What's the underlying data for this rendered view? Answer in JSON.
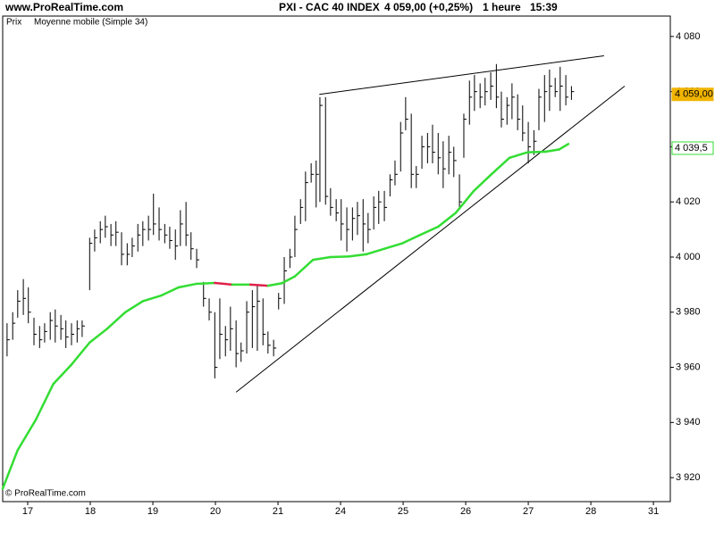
{
  "chart_data": {
    "type": "ohlc",
    "site": "www.ProRealTime.com",
    "title": "PXI - CAC 40 INDEX",
    "quote": "4 059,00 (+0,25%)",
    "interval": "1 heure",
    "time": "15:39",
    "footer": "© ProRealTime.com",
    "xlim": [
      -0.4,
      10.27
    ],
    "xticks": [
      {
        "value": 0,
        "label": "17"
      },
      {
        "value": 1,
        "label": "18"
      },
      {
        "value": 2,
        "label": "19"
      },
      {
        "value": 3,
        "label": "20"
      },
      {
        "value": 4,
        "label": "21"
      },
      {
        "value": 5,
        "label": "24"
      },
      {
        "value": 6,
        "label": "25"
      },
      {
        "value": 7,
        "label": "26"
      },
      {
        "value": 8,
        "label": "27"
      },
      {
        "value": 9,
        "label": "28"
      },
      {
        "value": 10,
        "label": "31"
      }
    ],
    "ylim": [
      3911.3,
      4087.4
    ],
    "yticks": [
      {
        "value": 3920,
        "label": "3 920"
      },
      {
        "value": 3940,
        "label": "3 940"
      },
      {
        "value": 3960,
        "label": "3 960"
      },
      {
        "value": 3980,
        "label": "3 980"
      },
      {
        "value": 4000,
        "label": "4 000"
      },
      {
        "value": 4020,
        "label": "4 020"
      },
      {
        "value": 4040,
        "label": "4 040"
      },
      {
        "value": 4060,
        "label": "4 060"
      },
      {
        "value": 4080,
        "label": "4 080"
      }
    ],
    "grid": false,
    "price": {
      "name": "Prix",
      "color": "#000000",
      "x": [
        -0.33,
        -0.24,
        -0.16,
        -0.07,
        0.01,
        0.1,
        0.19,
        0.27,
        0.36,
        0.44,
        0.53,
        0.61,
        0.7,
        0.79,
        0.87,
        0.99,
        1.07,
        1.16,
        1.24,
        1.33,
        1.41,
        1.5,
        1.59,
        1.67,
        1.76,
        1.84,
        1.93,
        2.01,
        2.1,
        2.19,
        2.27,
        2.36,
        2.44,
        2.53,
        2.61,
        2.7,
        2.81,
        2.9,
        2.99,
        3.07,
        3.16,
        3.24,
        3.33,
        3.41,
        3.5,
        3.59,
        3.67,
        3.76,
        3.84,
        3.93,
        4.01,
        4.1,
        4.19,
        4.27,
        4.36,
        4.44,
        4.53,
        4.61,
        4.67,
        4.76,
        4.84,
        4.93,
        5.01,
        5.1,
        5.19,
        5.27,
        5.36,
        5.44,
        5.53,
        5.61,
        5.7,
        5.79,
        5.87,
        5.96,
        6.04,
        6.13,
        6.21,
        6.3,
        6.39,
        6.47,
        6.56,
        6.64,
        6.73,
        6.81,
        6.9,
        6.97,
        7.06,
        7.14,
        7.23,
        7.31,
        7.4,
        7.49,
        7.57,
        7.66,
        7.74,
        7.83,
        7.91,
        8.0,
        8.09,
        8.17,
        8.26,
        8.34,
        8.43,
        8.51,
        8.6,
        8.69
      ],
      "high": [
        3976,
        3980,
        3988,
        3992,
        3989,
        3978,
        3975,
        3976,
        3980,
        3981,
        3979,
        3977,
        3976,
        3977,
        3977,
        4007,
        4010,
        4013,
        4015,
        4012,
        4013,
        4009,
        4005,
        4007,
        4012,
        4013,
        4015,
        4023,
        4018,
        4012,
        4011,
        4010,
        4017,
        4020,
        4009,
        4003,
        3991,
        3985,
        3980,
        3985,
        3975,
        3982,
        3977,
        3969,
        3984,
        3988,
        3990,
        3985,
        3973,
        3970,
        3987,
        4000,
        4003,
        4015,
        4021,
        4031,
        4034,
        4035,
        4058,
        4058,
        4025,
        4021,
        4021,
        4018,
        4018,
        4020,
        4021,
        4016,
        4022,
        4024,
        4024,
        4030,
        4035,
        4049,
        4058,
        4052,
        4033,
        4044,
        4045,
        4048,
        4045,
        4042,
        4044,
        4040,
        4030,
        4052,
        4064,
        4066,
        4063,
        4065,
        4067,
        4070,
        4060,
        4058,
        4063,
        4059,
        4055,
        4049,
        4046,
        4061,
        4066,
        4068,
        4065,
        4069,
        4066,
        4062
      ],
      "low": [
        3964,
        3970,
        3978,
        3979,
        3976,
        3968,
        3967,
        3969,
        3970,
        3969,
        3970,
        3967,
        3968,
        3969,
        3971,
        3988,
        4002,
        4005,
        4007,
        4004,
        4004,
        3997,
        3997,
        4000,
        4002,
        4004,
        4006,
        4008,
        4006,
        4005,
        4003,
        3999,
        4004,
        4004,
        3999,
        3996,
        3982,
        3977,
        3956,
        3963,
        3964,
        3966,
        3960,
        3962,
        3965,
        3967,
        3966,
        3968,
        3965,
        3964,
        3981,
        3983,
        3996,
        4000,
        4012,
        4013,
        4027,
        4018,
        4020,
        4019,
        4015,
        4013,
        4006,
        4002,
        4006,
        4008,
        4002,
        4005,
        4010,
        4012,
        4013,
        4022,
        4026,
        4031,
        4046,
        4025,
        4025,
        4032,
        4034,
        4034,
        4030,
        4025,
        4030,
        4029,
        4018,
        4036,
        4048,
        4053,
        4054,
        4055,
        4057,
        4054,
        4047,
        4048,
        4050,
        4046,
        4042,
        4034,
        4037,
        4046,
        4049,
        4053,
        4058,
        4053,
        4055,
        4057
      ],
      "close": [
        3970,
        3976,
        3984,
        3985,
        3980,
        3972,
        3970,
        3973,
        3977,
        3975,
        3974,
        3971,
        3972,
        3974,
        3975,
        4005,
        4007,
        4010,
        4011,
        4008,
        4009,
        4001,
        4001,
        4004,
        4008,
        4010,
        4010,
        4012,
        4010,
        4008,
        4006,
        4004,
        4012,
        4008,
        4003,
        3999,
        3985,
        3980,
        3960,
        3972,
        3970,
        3974,
        3965,
        3966,
        3980,
        3982,
        3984,
        3972,
        3968,
        3967,
        3985,
        3995,
        4000,
        4010,
        4018,
        4027,
        4030,
        4030,
        4055,
        4022,
        4018,
        4016,
        4012,
        4010,
        4014,
        4015,
        4012,
        4010,
        4018,
        4020,
        4018,
        4028,
        4030,
        4045,
        4050,
        4030,
        4030,
        4040,
        4040,
        4038,
        4036,
        4032,
        4038,
        4035,
        4020,
        4050,
        4058,
        4060,
        4058,
        4060,
        4062,
        4058,
        4050,
        4055,
        4058,
        4050,
        4045,
        4040,
        4042,
        4058,
        4060,
        4062,
        4060,
        4062,
        4058,
        4060
      ]
    },
    "average": {
      "name": "Moyenne mobile (Simple 34)",
      "color": "#33dd33",
      "down_color": "#e0204a",
      "x": [
        -0.4,
        -0.16,
        0.13,
        0.41,
        0.7,
        0.99,
        1.27,
        1.56,
        1.84,
        2.13,
        2.41,
        2.7,
        2.99,
        3.27,
        3.56,
        3.84,
        4.06,
        4.27,
        4.56,
        4.84,
        5.13,
        5.41,
        5.7,
        5.99,
        6.27,
        6.56,
        6.84,
        7.13,
        7.41,
        7.7,
        7.99,
        8.27,
        8.49,
        8.64
      ],
      "values": [
        3916,
        3930,
        3941,
        3954,
        3961,
        3969,
        3974,
        3980,
        3984,
        3986,
        3989,
        3990.3,
        3990.6,
        3990,
        3990,
        3989.6,
        3990.5,
        3993,
        3999,
        4000,
        4000.2,
        4001,
        4003,
        4005,
        4008,
        4011,
        4016,
        4024,
        4030,
        4036,
        4038,
        4038.2,
        4039,
        4041
      ]
    },
    "trendlines": [
      {
        "x": [
          4.66,
          9.21
        ],
        "y": [
          4059,
          4073
        ]
      },
      {
        "x": [
          3.33,
          9.54
        ],
        "y": [
          3951,
          4062
        ]
      }
    ],
    "last_price": {
      "value": 4059,
      "label": "4 059,00",
      "color": "#f0b400"
    },
    "average_last": {
      "value": 4039.5,
      "label": "4 039,5",
      "color": "#33dd33"
    }
  }
}
